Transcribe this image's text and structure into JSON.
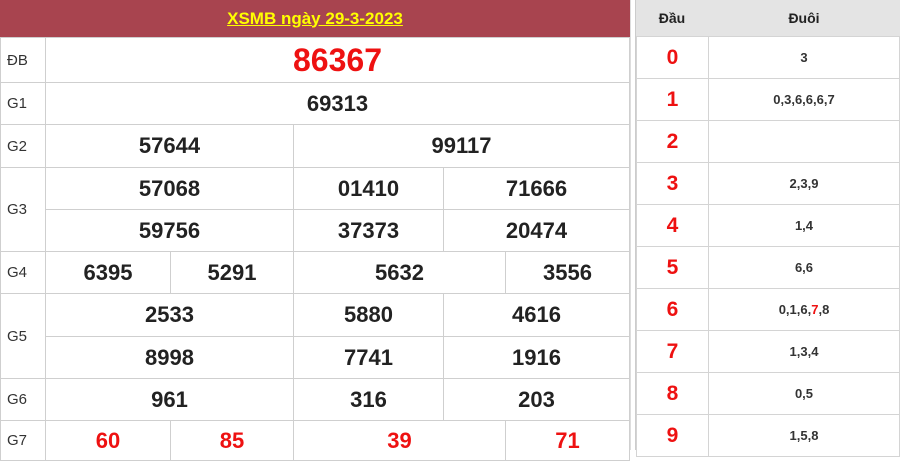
{
  "title": "XSMB ngày 29-3-2023",
  "rows": {
    "db": {
      "label": "ĐB",
      "values": [
        "86367"
      ]
    },
    "g1": {
      "label": "G1",
      "values": [
        "69313"
      ]
    },
    "g2": {
      "label": "G2",
      "values": [
        "57644",
        "99117"
      ]
    },
    "g3": {
      "label": "G3",
      "values": [
        "57068",
        "01410",
        "71666",
        "59756",
        "37373",
        "20474"
      ]
    },
    "g4": {
      "label": "G4",
      "values": [
        "6395",
        "5291",
        "5632",
        "3556"
      ]
    },
    "g5": {
      "label": "G5",
      "values": [
        "2533",
        "5880",
        "4616",
        "8998",
        "7741",
        "1916"
      ]
    },
    "g6": {
      "label": "G6",
      "values": [
        "961",
        "316",
        "203"
      ]
    },
    "g7": {
      "label": "G7",
      "values": [
        "60",
        "85",
        "39",
        "71"
      ]
    }
  },
  "loto": {
    "head_label": "Đầu",
    "tail_label": "Đuôi",
    "rows": [
      {
        "head": "0",
        "tail": "3"
      },
      {
        "head": "1",
        "tail": "0,3,6,6,6,7"
      },
      {
        "head": "2",
        "tail": ""
      },
      {
        "head": "3",
        "tail": "2,3,9"
      },
      {
        "head": "4",
        "tail": "1,4"
      },
      {
        "head": "5",
        "tail": "6,6"
      },
      {
        "head": "6",
        "tail_before": "0,1,6,",
        "tail_highlight": "7",
        "tail_after": ",8"
      },
      {
        "head": "7",
        "tail": "1,3,4"
      },
      {
        "head": "8",
        "tail": "0,5"
      },
      {
        "head": "9",
        "tail": "1,5,8"
      }
    ]
  },
  "colors": {
    "header_bg": "#a8444f",
    "header_text": "#ffff00",
    "highlight": "#ee1111"
  }
}
